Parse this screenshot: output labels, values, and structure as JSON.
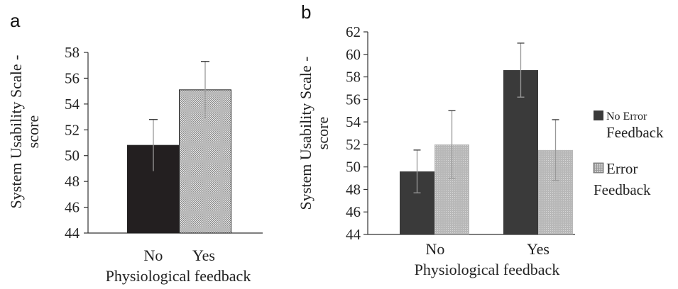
{
  "chart_data": [
    {
      "panel": "a",
      "type": "bar",
      "categories": [
        "No",
        "Yes"
      ],
      "values": [
        50.8,
        55.1
      ],
      "errors": [
        2.0,
        2.2
      ],
      "xlabel": "Physiological feedback",
      "ylabel_lines": [
        "System Usability Scale -",
        "score"
      ],
      "ylim": [
        44,
        58
      ],
      "yticks": [
        44,
        46,
        48,
        50,
        52,
        54,
        56,
        58
      ],
      "colors": [
        "#231f20",
        "#b0b0b0"
      ],
      "grid": false
    },
    {
      "panel": "b",
      "type": "bar",
      "categories": [
        "No",
        "Yes"
      ],
      "series": [
        {
          "name_lines": [
            "No Error",
            "Feedback"
          ],
          "values": [
            49.6,
            58.6
          ],
          "errors": [
            1.9,
            2.4
          ],
          "color": "#3a3a3a"
        },
        {
          "name_lines": [
            "Error",
            "Feedback"
          ],
          "values": [
            52.0,
            51.5
          ],
          "errors": [
            3.0,
            2.7
          ],
          "color": "#b5b5b5"
        }
      ],
      "xlabel": "Physiological feedback",
      "ylabel_lines": [
        "System Usability Scale -",
        "score"
      ],
      "ylim": [
        44,
        62
      ],
      "yticks": [
        44,
        46,
        48,
        50,
        52,
        54,
        56,
        58,
        60,
        62
      ],
      "legend": "right",
      "grid": false
    }
  ]
}
